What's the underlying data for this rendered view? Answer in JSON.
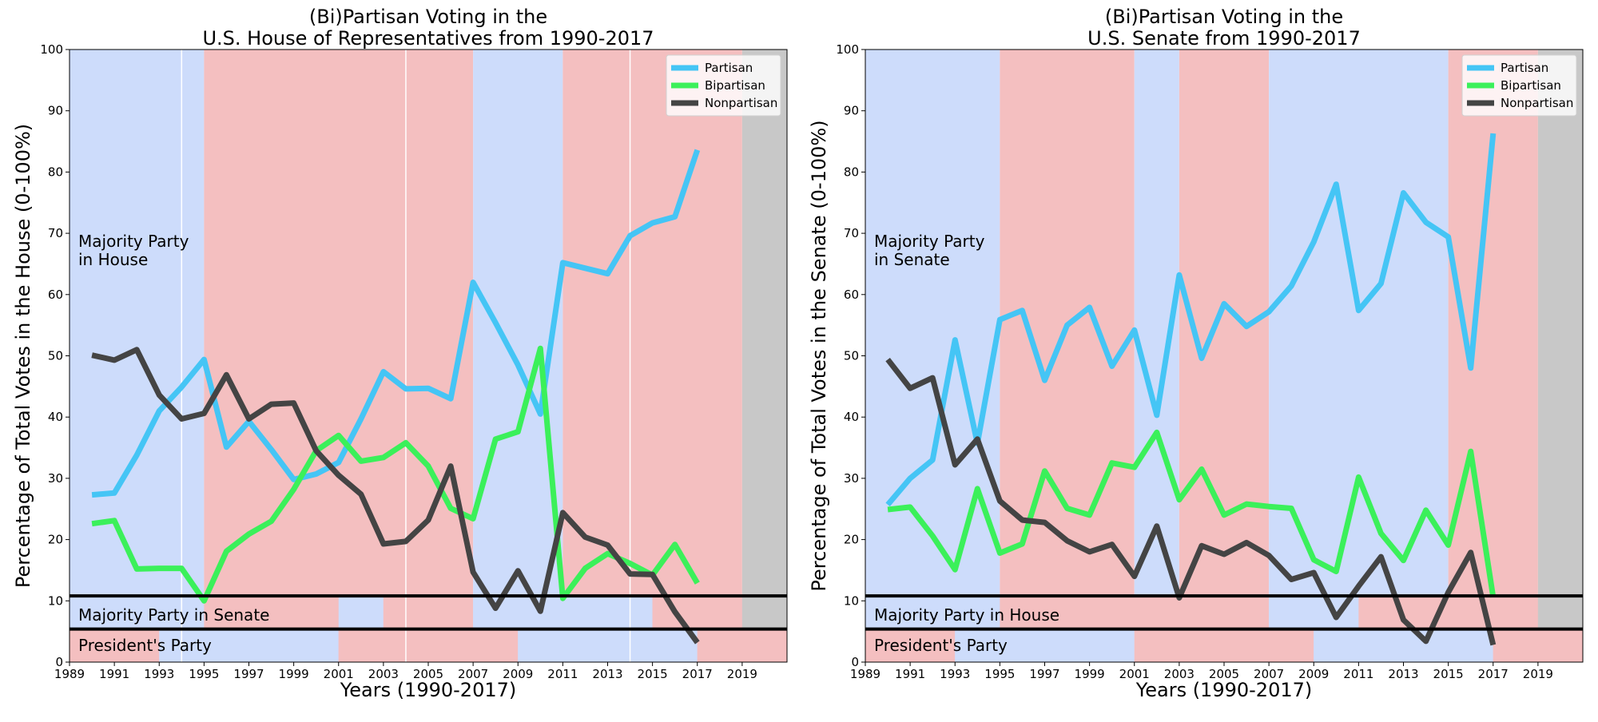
{
  "colors": {
    "democrat": "#cddcfb",
    "republican": "#f4bfc0",
    "future": "#c8c8c8",
    "partisan": "#45c5f5",
    "bipartisan": "#3bf05a",
    "nonpartisan": "#444444"
  },
  "chart_data": [
    {
      "type": "line",
      "title_line1": "(Bi)Partisan Voting in the",
      "title_line2": "U.S. House of Representatives from 1990-2017",
      "xlabel": "Years (1990-2017)",
      "ylabel": "Percentage of Total Votes in the House (0-100%)",
      "xlim": [
        1989,
        2021
      ],
      "ylim": [
        0,
        100
      ],
      "xticks": [
        1989,
        1991,
        1993,
        1995,
        1997,
        1999,
        2001,
        2003,
        2005,
        2007,
        2009,
        2011,
        2013,
        2015,
        2017,
        2019
      ],
      "yticks": [
        0,
        10,
        20,
        30,
        40,
        50,
        60,
        70,
        80,
        90,
        100
      ],
      "legend_position": "top-right",
      "majority_label_line1": "Majority Party",
      "majority_label_line2": "in House",
      "band1_label": "Majority Party in Senate",
      "band2_label": "President's Party",
      "main_regions": [
        {
          "start": 1989,
          "end": 1995,
          "party": "democrat"
        },
        {
          "start": 1995,
          "end": 2007,
          "party": "republican"
        },
        {
          "start": 2007,
          "end": 2011,
          "party": "democrat"
        },
        {
          "start": 2011,
          "end": 2019,
          "party": "republican"
        },
        {
          "start": 2019,
          "end": 2021,
          "party": "future"
        }
      ],
      "white_lines": [
        1994,
        2004,
        2014
      ],
      "band1_regions": [
        {
          "start": 1989,
          "end": 1995,
          "party": "democrat"
        },
        {
          "start": 1995,
          "end": 2001,
          "party": "republican"
        },
        {
          "start": 2001,
          "end": 2003,
          "party": "democrat"
        },
        {
          "start": 2003,
          "end": 2007,
          "party": "republican"
        },
        {
          "start": 2007,
          "end": 2015,
          "party": "democrat"
        },
        {
          "start": 2015,
          "end": 2019,
          "party": "republican"
        },
        {
          "start": 2019,
          "end": 2021,
          "party": "future"
        }
      ],
      "band2_regions": [
        {
          "start": 1989,
          "end": 1993,
          "party": "republican"
        },
        {
          "start": 1993,
          "end": 2001,
          "party": "democrat"
        },
        {
          "start": 2001,
          "end": 2009,
          "party": "republican"
        },
        {
          "start": 2009,
          "end": 2017,
          "party": "democrat"
        },
        {
          "start": 2017,
          "end": 2021,
          "party": "republican"
        }
      ],
      "x": [
        1990,
        1991,
        1992,
        1993,
        1994,
        1995,
        1996,
        1997,
        1998,
        1999,
        2000,
        2001,
        2002,
        2003,
        2004,
        2005,
        2006,
        2007,
        2008,
        2009,
        2010,
        2011,
        2012,
        2013,
        2014,
        2015,
        2016,
        2017
      ],
      "series": [
        {
          "name": "Partisan",
          "color_key": "partisan",
          "values": [
            27.3,
            27.6,
            33.8,
            41.0,
            44.9,
            49.4,
            35.1,
            39.3,
            34.7,
            29.8,
            30.7,
            32.6,
            39.7,
            47.4,
            44.6,
            44.7,
            43.0,
            62.0,
            55.4,
            48.5,
            40.5,
            65.2,
            64.3,
            63.4,
            69.6,
            71.7,
            72.7,
            83.6
          ]
        },
        {
          "name": "Bipartisan",
          "color_key": "bipartisan",
          "values": [
            22.6,
            23.1,
            15.2,
            15.3,
            15.3,
            10.0,
            18.1,
            20.9,
            23.0,
            28.2,
            34.5,
            37.0,
            32.8,
            33.4,
            35.8,
            32.0,
            25.1,
            23.4,
            36.4,
            37.6,
            51.2,
            10.4,
            15.3,
            17.7,
            16.1,
            14.2,
            19.2,
            12.9
          ]
        },
        {
          "name": "Nonpartisan",
          "color_key": "nonpartisan",
          "values": [
            50.1,
            49.3,
            51.0,
            43.6,
            39.7,
            40.6,
            46.9,
            39.7,
            42.1,
            42.3,
            34.5,
            30.5,
            27.4,
            19.3,
            19.7,
            23.2,
            32.0,
            14.7,
            8.8,
            14.9,
            8.3,
            24.4,
            20.4,
            19.1,
            14.4,
            14.3,
            8.2,
            3.2
          ]
        }
      ]
    },
    {
      "type": "line",
      "title_line1": "(Bi)Partisan Voting in the",
      "title_line2": "U.S. Senate from 1990-2017",
      "xlabel": "Years (1990-2017)",
      "ylabel": "Percentage of Total Votes in the Senate (0-100%)",
      "xlim": [
        1989,
        2021
      ],
      "ylim": [
        0,
        100
      ],
      "xticks": [
        1989,
        1991,
        1993,
        1995,
        1997,
        1999,
        2001,
        2003,
        2005,
        2007,
        2009,
        2011,
        2013,
        2015,
        2017,
        2019
      ],
      "yticks": [
        0,
        10,
        20,
        30,
        40,
        50,
        60,
        70,
        80,
        90,
        100
      ],
      "legend_position": "top-right",
      "majority_label_line1": "Majority Party",
      "majority_label_line2": "in Senate",
      "band1_label": "Majority Party in House",
      "band2_label": "President's Party",
      "main_regions": [
        {
          "start": 1989,
          "end": 1995,
          "party": "democrat"
        },
        {
          "start": 1995,
          "end": 2001,
          "party": "republican"
        },
        {
          "start": 2001,
          "end": 2003,
          "party": "democrat"
        },
        {
          "start": 2003,
          "end": 2007,
          "party": "republican"
        },
        {
          "start": 2007,
          "end": 2015,
          "party": "democrat"
        },
        {
          "start": 2015,
          "end": 2019,
          "party": "republican"
        },
        {
          "start": 2019,
          "end": 2021,
          "party": "future"
        }
      ],
      "white_lines": [],
      "band1_regions": [
        {
          "start": 1989,
          "end": 1995,
          "party": "democrat"
        },
        {
          "start": 1995,
          "end": 2007,
          "party": "republican"
        },
        {
          "start": 2007,
          "end": 2011,
          "party": "democrat"
        },
        {
          "start": 2011,
          "end": 2019,
          "party": "republican"
        },
        {
          "start": 2019,
          "end": 2021,
          "party": "future"
        }
      ],
      "band2_regions": [
        {
          "start": 1989,
          "end": 1993,
          "party": "republican"
        },
        {
          "start": 1993,
          "end": 2001,
          "party": "democrat"
        },
        {
          "start": 2001,
          "end": 2009,
          "party": "republican"
        },
        {
          "start": 2009,
          "end": 2017,
          "party": "democrat"
        },
        {
          "start": 2017,
          "end": 2021,
          "party": "republican"
        }
      ],
      "x": [
        1990,
        1991,
        1992,
        1993,
        1994,
        1995,
        1996,
        1997,
        1998,
        1999,
        2000,
        2001,
        2002,
        2003,
        2004,
        2005,
        2006,
        2007,
        2008,
        2009,
        2010,
        2011,
        2012,
        2013,
        2014,
        2015,
        2016,
        2017
      ],
      "series": [
        {
          "name": "Partisan",
          "color_key": "partisan",
          "values": [
            25.7,
            30.0,
            33.0,
            52.6,
            35.7,
            55.9,
            57.4,
            46.0,
            55.0,
            57.9,
            48.3,
            54.2,
            40.3,
            63.2,
            49.6,
            58.5,
            54.8,
            57.2,
            61.4,
            68.6,
            78.0,
            57.4,
            61.8,
            76.6,
            71.8,
            69.4,
            48.0,
            86.3
          ]
        },
        {
          "name": "Bipartisan",
          "color_key": "bipartisan",
          "values": [
            24.9,
            25.3,
            20.6,
            15.1,
            28.3,
            17.8,
            19.3,
            31.2,
            25.1,
            24.0,
            32.5,
            31.8,
            37.5,
            26.5,
            31.5,
            24.0,
            25.8,
            25.4,
            25.1,
            16.7,
            14.8,
            30.2,
            21.0,
            16.6,
            24.8,
            19.1,
            34.4,
            10.6
          ]
        },
        {
          "name": "Nonpartisan",
          "color_key": "nonpartisan",
          "values": [
            49.4,
            44.7,
            46.4,
            32.2,
            36.4,
            26.3,
            23.2,
            22.8,
            19.8,
            18.0,
            19.2,
            14.0,
            22.2,
            10.5,
            19.0,
            17.6,
            19.5,
            17.4,
            13.5,
            14.6,
            7.3,
            12.4,
            17.2,
            6.9,
            3.4,
            11.4,
            17.9,
            2.8
          ]
        }
      ]
    }
  ]
}
